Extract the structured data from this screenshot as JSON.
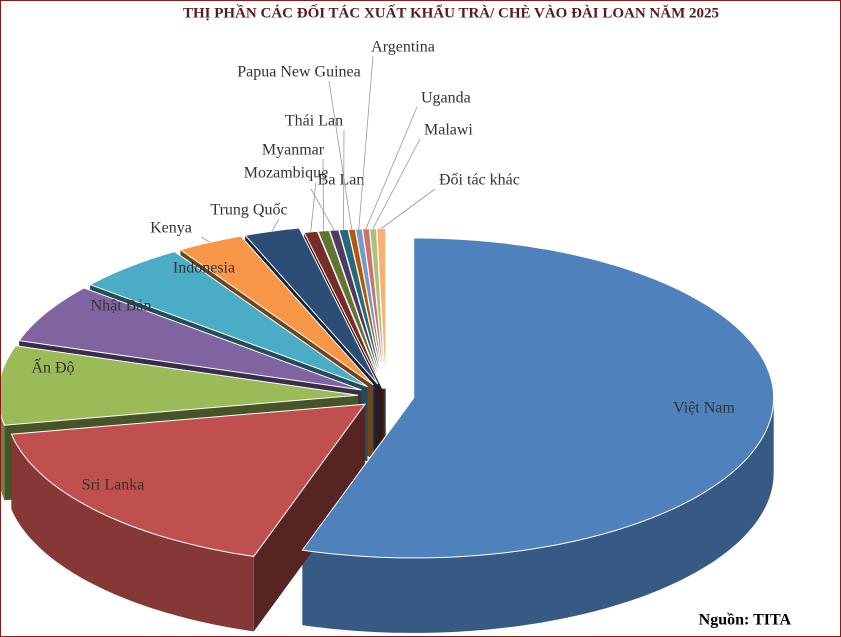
{
  "chart_data": {
    "type": "pie",
    "title": "THỊ PHẦN CÁC ĐỐI TÁC XUẤT KHẨU TRÀ/ CHÈ VÀO ĐÀI LOAN NĂM 2025",
    "source": "Nguồn: TITA",
    "categories": [
      "Việt Nam",
      "Sri Lanka",
      "Ấn Độ",
      "Nhật Bản",
      "Indonesia",
      "Kenya",
      "Trung Quốc",
      "Mozambique",
      "Myanmar",
      "Ba Lan",
      "Thái Lan",
      "Papua New Guinea",
      "Argentina",
      "Uganda",
      "Malawi",
      "Đối tác khác"
    ],
    "values": [
      55,
      17,
      8,
      6,
      5,
      3,
      2.5,
      0.6,
      0.5,
      0.4,
      0.4,
      0.3,
      0.3,
      0.3,
      0.3,
      0.4
    ],
    "colors": [
      "#4f81bd",
      "#c0504d",
      "#9bbb59",
      "#8064a2",
      "#4bacc6",
      "#f79646",
      "#2c4d75",
      "#772c2a",
      "#5f7530",
      "#4d3b62",
      "#276a7c",
      "#b65708",
      "#729aca",
      "#d0706d",
      "#aac379",
      "#f9b074"
    ]
  }
}
